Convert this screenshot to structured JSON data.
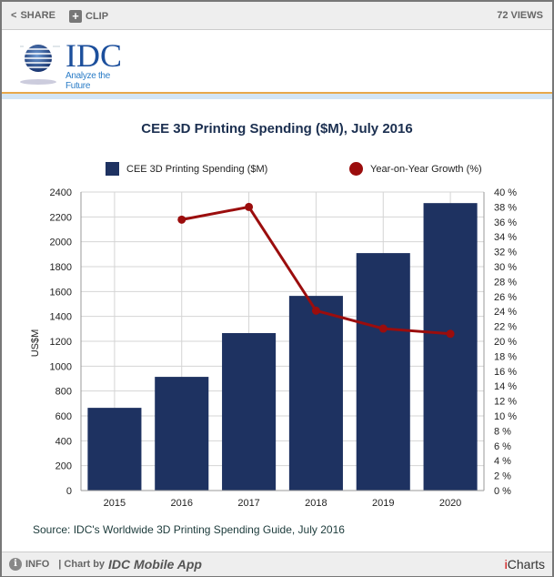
{
  "topbar": {
    "share": "SHARE",
    "clip": "CLIP",
    "views": "72 VIEWS"
  },
  "logo": {
    "text": "IDC",
    "tagline": "Analyze the Future"
  },
  "chart_data": {
    "type": "bar+line",
    "title": "CEE 3D Printing Spending ($M), July 2016",
    "categories": [
      "2015",
      "2016",
      "2017",
      "2018",
      "2019",
      "2020"
    ],
    "series": [
      {
        "name": "CEE 3D Printing Spending ($M)",
        "type": "bar",
        "axis": "left",
        "color": "#1e3261",
        "values": [
          665,
          914,
          1266,
          1565,
          1909,
          2311
        ]
      },
      {
        "name": "Year-on-Year Growth (%)",
        "type": "line",
        "axis": "right",
        "color": "#9b0d0d",
        "values": [
          null,
          36.3,
          38.0,
          24.1,
          21.7,
          21.0
        ]
      }
    ],
    "ylabel": "US$M",
    "ylim": [
      0,
      2400
    ],
    "yticks": [
      0,
      200,
      400,
      600,
      800,
      1000,
      1200,
      1400,
      1600,
      1800,
      2000,
      2200,
      2400
    ],
    "y2lim": [
      0,
      40
    ],
    "y2ticks": [
      "0 %",
      "2 %",
      "4 %",
      "6 %",
      "8 %",
      "10 %",
      "12 %",
      "14 %",
      "16 %",
      "18 %",
      "20 %",
      "22 %",
      "24 %",
      "26 %",
      "28 %",
      "30 %",
      "32 %",
      "34 %",
      "36 %",
      "38 %",
      "40 %"
    ],
    "grid": true,
    "legend": "top"
  },
  "source": "Source: IDC's Worldwide 3D Printing Spending Guide, July 2016",
  "footer": {
    "info": "INFO",
    "chart_by": "| Chart by",
    "app": "IDC Mobile App",
    "brand_i": "i",
    "brand_rest": "Charts"
  }
}
